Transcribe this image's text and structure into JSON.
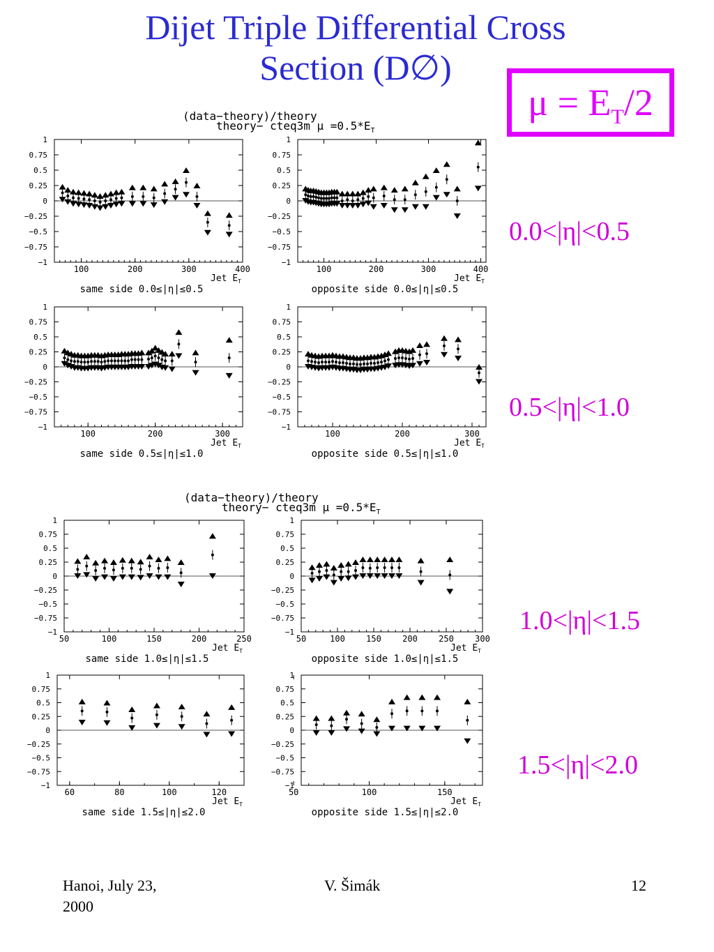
{
  "slide": {
    "title_line1": "Dijet Triple Differential Cross",
    "title_line2": "Section (D∅)",
    "mu_lhs": "μ = E",
    "mu_sub": "T",
    "mu_rhs": "/2",
    "footer_left_line1": "Hanoi, July 23,",
    "footer_left_line2": "2000",
    "footer_center": "V. Šimák",
    "footer_right": "12"
  },
  "blocks": [
    {
      "head1": "(data−theory)/theory",
      "head2": "theory− cteq3m μ =0.5*E",
      "head2_sub": "T"
    },
    {
      "head1": "(data−theory)/theory",
      "head2": "theory− cteq3m μ =0.5*E",
      "head2_sub": "T"
    }
  ],
  "eta_labels": [
    "0.0<|η|<0.5",
    "0.5<|η|<1.0",
    "1.0<|η|<1.5",
    "1.5<|η|<2.0"
  ],
  "chart_data": [
    {
      "type": "scatter",
      "caption": "same side 0.0≤|η|≤0.5",
      "xlabel": "Jet E",
      "xlabel_sub": "T",
      "xlim": [
        50,
        400
      ],
      "xticks": [
        100,
        200,
        300,
        400
      ],
      "ylim": [
        -1,
        1
      ],
      "yticks": [
        "1",
        "0.75",
        "0.5",
        "0.25",
        "0",
        "−0.25",
        "−0.5",
        "−0.75",
        "−1"
      ],
      "x": [
        65,
        75,
        85,
        95,
        105,
        115,
        125,
        135,
        145,
        155,
        165,
        175,
        195,
        215,
        235,
        255,
        275,
        295,
        315,
        335,
        375
      ],
      "y": [
        0.13,
        0.08,
        0.05,
        0.04,
        0.03,
        0.02,
        0.0,
        -0.02,
        0.0,
        0.02,
        0.04,
        0.05,
        0.07,
        0.07,
        0.05,
        0.12,
        0.19,
        0.3,
        0.07,
        -0.35,
        -0.4
      ],
      "band_up": [
        0.23,
        0.18,
        0.15,
        0.14,
        0.13,
        0.12,
        0.1,
        0.08,
        0.1,
        0.12,
        0.14,
        0.15,
        0.22,
        0.22,
        0.2,
        0.28,
        0.32,
        0.5,
        0.25,
        -0.2,
        -0.23
      ],
      "band_dn": [
        0.02,
        -0.02,
        -0.05,
        -0.06,
        -0.07,
        -0.08,
        -0.1,
        -0.12,
        -0.1,
        -0.08,
        -0.06,
        -0.05,
        -0.05,
        -0.05,
        -0.07,
        -0.02,
        0.05,
        0.1,
        -0.08,
        -0.52,
        -0.55
      ]
    },
    {
      "type": "scatter",
      "caption": "opposite side 0.0≤|η|≤0.5",
      "xlabel": "Jet E",
      "xlabel_sub": "T",
      "xlim": [
        50,
        410
      ],
      "xticks": [
        100,
        200,
        300,
        400
      ],
      "ylim": [
        -1,
        1
      ],
      "yticks": [
        "1",
        "0.75",
        "0.5",
        "0.25",
        "0",
        "−0.25",
        "−0.5",
        "−0.75",
        "−1"
      ],
      "x": [
        65,
        70,
        75,
        80,
        85,
        90,
        95,
        100,
        105,
        110,
        115,
        120,
        125,
        135,
        145,
        155,
        165,
        175,
        185,
        195,
        215,
        235,
        255,
        275,
        295,
        315,
        335,
        355,
        395
      ],
      "y": [
        0.1,
        0.08,
        0.07,
        0.07,
        0.06,
        0.05,
        0.04,
        0.04,
        0.04,
        0.04,
        0.05,
        0.05,
        0.05,
        0.0,
        0.02,
        0.0,
        0.02,
        0.04,
        0.07,
        0.05,
        0.08,
        0.02,
        0.02,
        0.1,
        0.15,
        0.22,
        0.35,
        0.0,
        0.55
      ],
      "band_up": [
        0.2,
        0.18,
        0.17,
        0.17,
        0.16,
        0.15,
        0.14,
        0.14,
        0.14,
        0.14,
        0.15,
        0.15,
        0.15,
        0.12,
        0.12,
        0.12,
        0.12,
        0.14,
        0.18,
        0.2,
        0.22,
        0.18,
        0.2,
        0.3,
        0.4,
        0.5,
        0.6,
        0.2,
        0.95
      ],
      "band_dn": [
        0.0,
        -0.02,
        -0.03,
        -0.03,
        -0.04,
        -0.05,
        -0.06,
        -0.06,
        -0.06,
        -0.06,
        -0.05,
        -0.05,
        -0.05,
        -0.08,
        -0.08,
        -0.08,
        -0.08,
        -0.06,
        -0.04,
        -0.1,
        -0.08,
        -0.15,
        -0.15,
        -0.1,
        -0.1,
        0.05,
        0.1,
        -0.25,
        0.2
      ]
    },
    {
      "type": "scatter",
      "caption": "same side 0.5≤|η|≤1.0",
      "xlabel": "Jet E",
      "xlabel_sub": "T",
      "xlim": [
        50,
        330
      ],
      "xticks": [
        100,
        200,
        300
      ],
      "ylim": [
        -1,
        1
      ],
      "yticks": [
        "1",
        "0.75",
        "0.5",
        "0.25",
        "0",
        "−0.25",
        "−0.5",
        "−0.75",
        "−1"
      ],
      "x": [
        65,
        70,
        75,
        80,
        85,
        90,
        95,
        100,
        105,
        110,
        115,
        120,
        125,
        130,
        135,
        140,
        145,
        150,
        155,
        160,
        165,
        170,
        175,
        180,
        190,
        195,
        200,
        205,
        210,
        215,
        225,
        235,
        260,
        310
      ],
      "y": [
        0.15,
        0.12,
        0.1,
        0.09,
        0.09,
        0.08,
        0.08,
        0.08,
        0.09,
        0.09,
        0.09,
        0.08,
        0.09,
        0.1,
        0.1,
        0.1,
        0.1,
        0.1,
        0.1,
        0.1,
        0.12,
        0.12,
        0.12,
        0.12,
        0.13,
        0.15,
        0.18,
        0.15,
        0.12,
        0.1,
        0.1,
        0.38,
        0.08,
        0.15
      ],
      "band_up": [
        0.27,
        0.24,
        0.22,
        0.2,
        0.2,
        0.19,
        0.19,
        0.19,
        0.2,
        0.2,
        0.2,
        0.19,
        0.2,
        0.21,
        0.21,
        0.21,
        0.21,
        0.22,
        0.22,
        0.22,
        0.23,
        0.23,
        0.23,
        0.24,
        0.24,
        0.27,
        0.32,
        0.28,
        0.25,
        0.22,
        0.22,
        0.58,
        0.24,
        0.45
      ],
      "band_dn": [
        0.05,
        0.02,
        0.0,
        -0.02,
        -0.02,
        -0.03,
        -0.03,
        -0.03,
        -0.02,
        -0.02,
        -0.02,
        -0.03,
        -0.02,
        -0.01,
        -0.01,
        -0.01,
        -0.01,
        -0.01,
        -0.01,
        -0.01,
        0.0,
        0.0,
        0.0,
        0.0,
        0.0,
        0.02,
        0.04,
        0.02,
        -0.01,
        -0.02,
        -0.04,
        0.18,
        -0.1,
        -0.15
      ]
    },
    {
      "type": "scatter",
      "caption": "opposite side 0.5≤|η|≤1.0",
      "xlabel": "Jet E",
      "xlabel_sub": "T",
      "xlim": [
        50,
        320
      ],
      "xticks": [
        100,
        200,
        300
      ],
      "ylim": [
        -1,
        1
      ],
      "yticks": [
        "1",
        "0.75",
        "0.5",
        "0.25",
        "0",
        "−0.25",
        "−0.5",
        "−0.75",
        "−1"
      ],
      "x": [
        65,
        70,
        75,
        80,
        85,
        90,
        95,
        100,
        105,
        110,
        115,
        120,
        125,
        130,
        135,
        140,
        145,
        150,
        155,
        160,
        165,
        170,
        175,
        180,
        190,
        195,
        200,
        205,
        210,
        215,
        225,
        235,
        260,
        280,
        310
      ],
      "y": [
        0.1,
        0.09,
        0.08,
        0.07,
        0.08,
        0.08,
        0.08,
        0.09,
        0.08,
        0.07,
        0.07,
        0.06,
        0.05,
        0.05,
        0.04,
        0.04,
        0.05,
        0.05,
        0.06,
        0.06,
        0.07,
        0.08,
        0.1,
        0.12,
        0.14,
        0.15,
        0.15,
        0.14,
        0.13,
        0.14,
        0.2,
        0.22,
        0.35,
        0.3,
        -0.1
      ],
      "band_up": [
        0.22,
        0.2,
        0.19,
        0.18,
        0.19,
        0.19,
        0.19,
        0.2,
        0.19,
        0.18,
        0.18,
        0.17,
        0.16,
        0.16,
        0.15,
        0.15,
        0.16,
        0.16,
        0.17,
        0.17,
        0.18,
        0.19,
        0.21,
        0.23,
        0.26,
        0.28,
        0.28,
        0.27,
        0.26,
        0.28,
        0.36,
        0.38,
        0.48,
        0.46,
        0.0
      ],
      "band_dn": [
        0.0,
        -0.01,
        -0.02,
        -0.03,
        -0.02,
        -0.02,
        -0.02,
        -0.01,
        -0.02,
        -0.03,
        -0.03,
        -0.04,
        -0.05,
        -0.05,
        -0.06,
        -0.06,
        -0.05,
        -0.05,
        -0.04,
        -0.04,
        -0.03,
        -0.02,
        -0.01,
        0.01,
        0.02,
        0.03,
        0.03,
        0.02,
        0.01,
        0.02,
        0.05,
        0.07,
        0.2,
        0.14,
        -0.25
      ]
    },
    {
      "type": "scatter",
      "caption": "same side 1.0≤|η|≤1.5",
      "xlabel": "Jet E",
      "xlabel_sub": "T",
      "xlim": [
        50,
        250
      ],
      "xticks": [
        50,
        100,
        150,
        200,
        250
      ],
      "ylim": [
        -1,
        1
      ],
      "yticks": [
        "1",
        "0.75",
        "0.5",
        "0.25",
        "0",
        "−0.25",
        "−0.5",
        "−0.75",
        "−1"
      ],
      "x": [
        65,
        75,
        85,
        95,
        105,
        115,
        125,
        135,
        145,
        155,
        165,
        180,
        215
      ],
      "y": [
        0.12,
        0.18,
        0.1,
        0.14,
        0.11,
        0.14,
        0.14,
        0.12,
        0.18,
        0.14,
        0.15,
        0.06,
        0.38
      ],
      "band_up": [
        0.27,
        0.35,
        0.24,
        0.28,
        0.25,
        0.29,
        0.28,
        0.26,
        0.35,
        0.3,
        0.32,
        0.25,
        0.72
      ],
      "band_dn": [
        0.0,
        0.02,
        -0.05,
        -0.02,
        -0.05,
        -0.02,
        -0.02,
        -0.03,
        0.0,
        -0.02,
        -0.02,
        -0.15,
        0.0
      ]
    },
    {
      "type": "scatter",
      "caption": "opposite side 1.0≤|η|≤1.5",
      "xlabel": "Jet E",
      "xlabel_sub": "T",
      "xlim": [
        50,
        300
      ],
      "xticks": [
        50,
        100,
        150,
        200,
        250,
        300
      ],
      "ylim": [
        -1,
        1
      ],
      "yticks": [
        "1",
        "0.75",
        "0.5",
        "0.25",
        "0",
        "−0.25",
        "−0.5",
        "−0.75",
        "−1"
      ],
      "x": [
        65,
        75,
        85,
        95,
        105,
        115,
        125,
        135,
        145,
        155,
        165,
        175,
        185,
        215,
        255
      ],
      "y": [
        0.05,
        0.08,
        0.1,
        0.02,
        0.08,
        0.08,
        0.1,
        0.15,
        0.14,
        0.15,
        0.15,
        0.15,
        0.15,
        0.08,
        0.02
      ],
      "band_up": [
        0.16,
        0.2,
        0.22,
        0.15,
        0.2,
        0.22,
        0.25,
        0.3,
        0.3,
        0.3,
        0.3,
        0.3,
        0.3,
        0.28,
        0.3
      ],
      "band_dn": [
        -0.08,
        -0.05,
        -0.02,
        -0.12,
        -0.05,
        -0.04,
        -0.02,
        0.0,
        0.0,
        0.0,
        0.0,
        0.0,
        0.0,
        -0.12,
        -0.28
      ]
    },
    {
      "type": "scatter",
      "caption": "same side 1.5≤|η|≤2.0",
      "xlabel": "Jet E",
      "xlabel_sub": "T",
      "xlim": [
        55,
        130
      ],
      "xticks": [
        60,
        80,
        100,
        120
      ],
      "ylim": [
        -1,
        1
      ],
      "yticks": [
        "1",
        "0.75",
        "0.5",
        "0.25",
        "0",
        "−0.25",
        "−0.5",
        "−0.75",
        "−1"
      ],
      "x": [
        65,
        75,
        85,
        95,
        105,
        115,
        125
      ],
      "y": [
        0.35,
        0.33,
        0.22,
        0.28,
        0.25,
        0.12,
        0.18
      ],
      "band_up": [
        0.52,
        0.5,
        0.38,
        0.45,
        0.43,
        0.3,
        0.42
      ],
      "band_dn": [
        0.14,
        0.13,
        0.04,
        0.08,
        0.06,
        -0.08,
        -0.07
      ]
    },
    {
      "type": "scatter",
      "caption": "opposite side 1.5≤|η|≤2.0",
      "xlabel": "Jet E",
      "xlabel_sub": "T",
      "xlim": [
        55,
        175
      ],
      "xticks": [
        50,
        100,
        150
      ],
      "ylim": [
        -1,
        1
      ],
      "yticks": [
        "1",
        "0.75",
        "0.5",
        "0.25",
        "0",
        "−0.25",
        "−0.5",
        "−0.75",
        "−1"
      ],
      "x": [
        65,
        75,
        85,
        95,
        105,
        115,
        125,
        135,
        145,
        165
      ],
      "y": [
        0.1,
        0.08,
        0.2,
        0.12,
        0.05,
        0.3,
        0.35,
        0.35,
        0.35,
        0.18
      ],
      "band_up": [
        0.22,
        0.22,
        0.32,
        0.3,
        0.2,
        0.52,
        0.6,
        0.6,
        0.6,
        0.52
      ],
      "band_dn": [
        -0.05,
        -0.05,
        0.02,
        -0.02,
        -0.07,
        0.03,
        0.03,
        0.03,
        0.03,
        -0.2
      ]
    }
  ]
}
